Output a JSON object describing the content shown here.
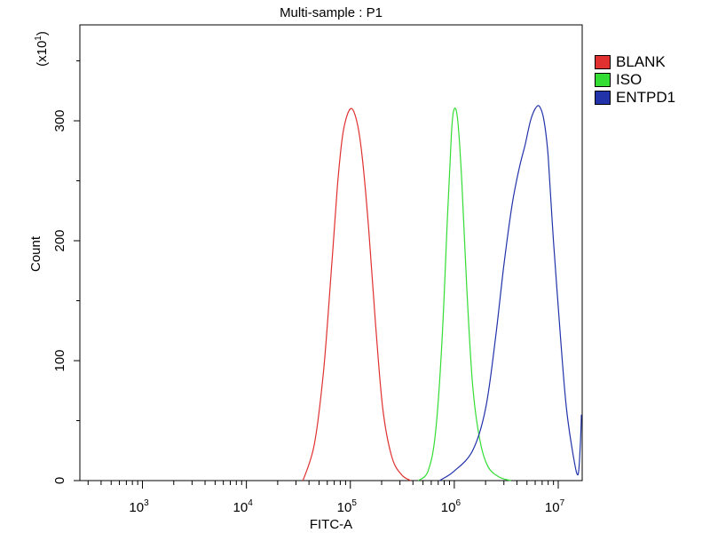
{
  "chart_data": {
    "type": "line",
    "title": "Multi-sample : P1",
    "xlabel": "FITC-A",
    "ylabel": "Count",
    "y_multiplier_label": "(x10",
    "y_multiplier_exp": "1",
    "y_multiplier_close": ")",
    "x_scale": "log",
    "xlim": [
      250,
      17000000
    ],
    "ylim": [
      0,
      380
    ],
    "x_ticks": [
      {
        "value": 1000,
        "base": "10",
        "exp": "3"
      },
      {
        "value": 10000,
        "base": "10",
        "exp": "4"
      },
      {
        "value": 100000,
        "base": "10",
        "exp": "5"
      },
      {
        "value": 1000000,
        "base": "10",
        "exp": "6"
      },
      {
        "value": 10000000,
        "base": "10",
        "exp": "7"
      }
    ],
    "y_ticks": [
      0,
      100,
      200,
      300
    ],
    "legend_position": "right",
    "series": [
      {
        "name": "BLANK",
        "color": "#e03030",
        "points": [
          [
            35000,
            0
          ],
          [
            45000,
            30
          ],
          [
            55000,
            90
          ],
          [
            65000,
            170
          ],
          [
            75000,
            245
          ],
          [
            85000,
            290
          ],
          [
            100000,
            310
          ],
          [
            115000,
            300
          ],
          [
            130000,
            270
          ],
          [
            150000,
            210
          ],
          [
            175000,
            130
          ],
          [
            205000,
            60
          ],
          [
            250000,
            20
          ],
          [
            310000,
            5
          ],
          [
            380000,
            0
          ]
        ]
      },
      {
        "name": "ISO",
        "color": "#33dd33",
        "points": [
          [
            450000,
            0
          ],
          [
            560000,
            8
          ],
          [
            660000,
            40
          ],
          [
            760000,
            115
          ],
          [
            860000,
            220
          ],
          [
            940000,
            290
          ],
          [
            1000000,
            310
          ],
          [
            1080000,
            300
          ],
          [
            1180000,
            250
          ],
          [
            1320000,
            160
          ],
          [
            1500000,
            80
          ],
          [
            1750000,
            35
          ],
          [
            2100000,
            12
          ],
          [
            2700000,
            3
          ],
          [
            3500000,
            0
          ]
        ]
      },
      {
        "name": "ENTPD1",
        "color": "#2233aa",
        "points": [
          [
            720000,
            0
          ],
          [
            1000000,
            8
          ],
          [
            1500000,
            25
          ],
          [
            2000000,
            60
          ],
          [
            2500000,
            120
          ],
          [
            3000000,
            180
          ],
          [
            3600000,
            230
          ],
          [
            4200000,
            260
          ],
          [
            4800000,
            280
          ],
          [
            5400000,
            300
          ],
          [
            6000000,
            310
          ],
          [
            6600000,
            312
          ],
          [
            7300000,
            300
          ],
          [
            8000000,
            270
          ],
          [
            9000000,
            200
          ],
          [
            10500000,
            120
          ],
          [
            12000000,
            60
          ],
          [
            14000000,
            20
          ],
          [
            15500000,
            5
          ],
          [
            16300000,
            30
          ],
          [
            16700000,
            55
          ]
        ]
      }
    ]
  }
}
